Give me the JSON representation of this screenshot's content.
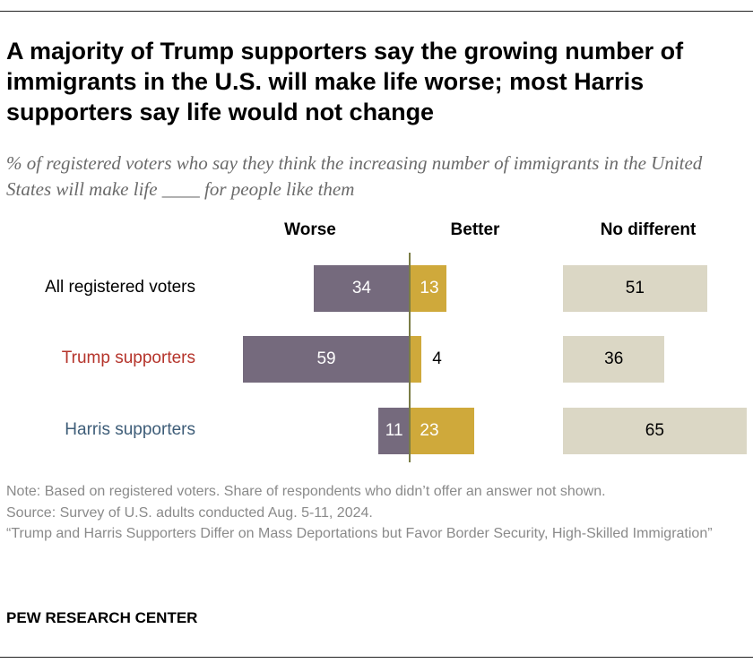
{
  "title": "A majority of Trump supporters say the growing number of immigrants in the U.S. will make life worse; most Harris supporters say life would not change",
  "subtitle": "% of registered voters who say they think the increasing number of immigrants in the United States will make life ____ for people like them",
  "colors": {
    "worse": "#756a7d",
    "better": "#cfa93b",
    "no_different": "#dbd7c5",
    "axis": "#7a7d46",
    "trump": "#b5342b",
    "harris": "#3e5d78",
    "all": "#000000"
  },
  "chart_data": {
    "type": "bar",
    "categories": [
      "All registered voters",
      "Trump supporters",
      "Harris supporters"
    ],
    "series": [
      {
        "name": "Worse",
        "values": [
          34,
          59,
          11
        ]
      },
      {
        "name": "Better",
        "values": [
          13,
          4,
          23
        ]
      },
      {
        "name": "No different",
        "values": [
          51,
          36,
          65
        ]
      }
    ]
  },
  "notes": {
    "note": "Note: Based on registered voters. Share of respondents who didn’t offer an answer not shown.",
    "source": "Source: Survey of U.S. adults conducted Aug. 5-11, 2024.",
    "report": "“Trump and Harris Supporters Differ on Mass Deportations but Favor Border Security, High-Skilled Immigration”"
  },
  "brand": "PEW RESEARCH CENTER"
}
